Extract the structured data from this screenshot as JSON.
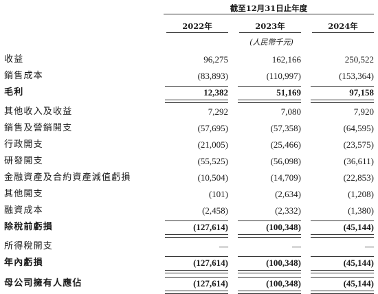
{
  "header": {
    "period": "截至12月31日止年度",
    "years": [
      "2022年",
      "2023年",
      "2024年"
    ],
    "unit": "(人民幣千元)"
  },
  "rows": [
    {
      "label": "收益",
      "values": [
        "96,275",
        "162,166",
        "250,522"
      ]
    },
    {
      "label": "銷售成本",
      "values": [
        "(83,893)",
        "(110,997)",
        "(153,364)"
      ]
    },
    {
      "label": "毛利",
      "values": [
        "12,382",
        "51,169",
        "97,158"
      ]
    },
    {
      "label": "其他收入及收益",
      "values": [
        "7,292",
        "7,080",
        "7,920"
      ]
    },
    {
      "label": "銷售及營銷開支",
      "values": [
        "(57,695)",
        "(57,358)",
        "(64,595)"
      ]
    },
    {
      "label": "行政開支",
      "values": [
        "(21,005)",
        "(25,466)",
        "(23,575)"
      ]
    },
    {
      "label": "研發開支",
      "values": [
        "(55,525)",
        "(56,098)",
        "(36,611)"
      ]
    },
    {
      "label": "金融資產及合約資產減值虧損",
      "values": [
        "(10,504)",
        "(14,709)",
        "(22,853)"
      ]
    },
    {
      "label": "其他開支",
      "values": [
        "(101)",
        "(2,634)",
        "(1,208)"
      ]
    },
    {
      "label": "融資成本",
      "values": [
        "(2,458)",
        "(2,332)",
        "(1,380)"
      ]
    },
    {
      "label": "除稅前虧損",
      "values": [
        "(127,614)",
        "(100,348)",
        "(45,144)"
      ]
    },
    {
      "label": "所得稅開支",
      "values": [
        "—",
        "—",
        "—"
      ]
    },
    {
      "label": "年內虧損",
      "values": [
        "(127,614)",
        "(100,348)",
        "(45,144)"
      ]
    },
    {
      "label": "母公司擁有人應佔",
      "values": [
        "(127,614)",
        "(100,348)",
        "(45,144)"
      ]
    }
  ]
}
